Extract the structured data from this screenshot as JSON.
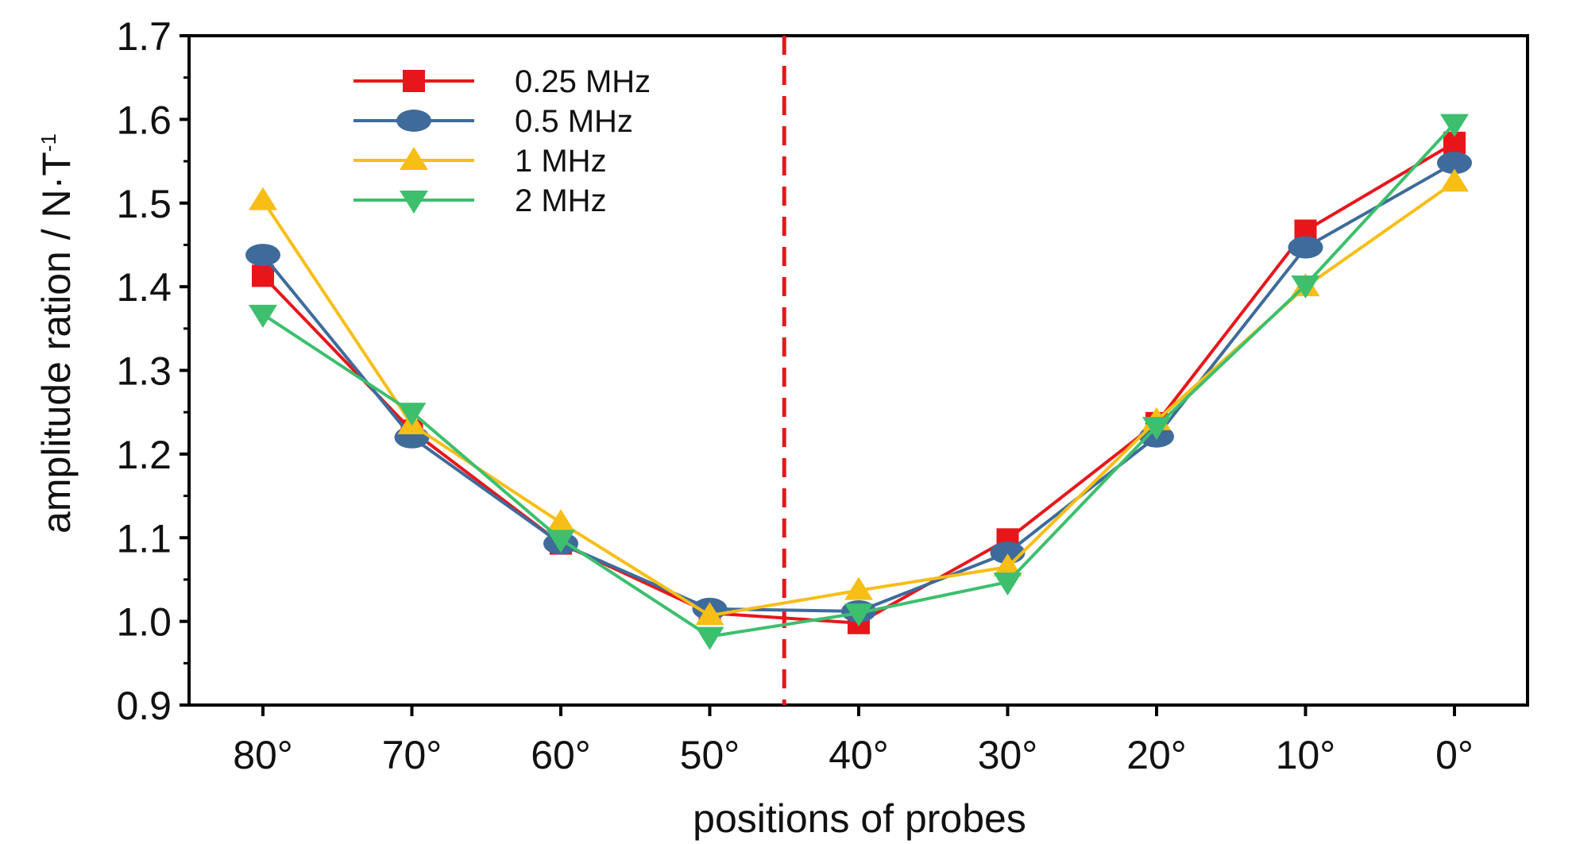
{
  "chart_data": {
    "type": "line",
    "title": "",
    "xlabel": "positions of probes",
    "ylabel": "amplitude ration / N·T",
    "ylabel_superscript": "-1",
    "categories": [
      "80°",
      "70°",
      "60°",
      "50°",
      "40°",
      "30°",
      "20°",
      "10°",
      "0°"
    ],
    "ylim": [
      0.9,
      1.7
    ],
    "yticks": [
      "0.9",
      "1.0",
      "1.1",
      "1.2",
      "1.3",
      "1.4",
      "1.5",
      "1.6",
      "1.7"
    ],
    "grid": false,
    "legend_position": "top-left",
    "reference_line": {
      "between": [
        "50°",
        "40°"
      ],
      "style": "dashed",
      "color": "#e8161b"
    },
    "series": [
      {
        "name": "0.25 MHz",
        "color": "#e8161b",
        "marker": "square",
        "values": [
          1.413,
          1.228,
          1.093,
          1.01,
          0.998,
          1.098,
          1.237,
          1.467,
          1.572
        ]
      },
      {
        "name": "0.5 MHz",
        "color": "#3e6b9a",
        "marker": "ellipse",
        "values": [
          1.438,
          1.22,
          1.093,
          1.015,
          1.012,
          1.082,
          1.221,
          1.447,
          1.548
        ]
      },
      {
        "name": "1 MHz",
        "color": "#f7be16",
        "marker": "triangle-up",
        "values": [
          1.503,
          1.235,
          1.118,
          1.007,
          1.037,
          1.065,
          1.24,
          1.4,
          1.525
        ]
      },
      {
        "name": "2 MHz",
        "color": "#3dbf6e",
        "marker": "triangle-down",
        "values": [
          1.367,
          1.25,
          1.098,
          0.982,
          1.01,
          1.047,
          1.233,
          1.402,
          1.595
        ]
      }
    ]
  }
}
